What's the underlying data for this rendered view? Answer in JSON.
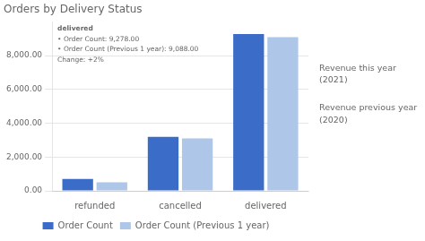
{
  "chart_data": {
    "type": "bar",
    "title": "Orders by Delivery Status",
    "categories": [
      "refunded",
      "cancelled",
      "delivered"
    ],
    "series": [
      {
        "name": "Order Count",
        "color": "#3b6cc7",
        "values": [
          700,
          3200,
          9278
        ]
      },
      {
        "name": "Order Count (Previous 1 year)",
        "color": "#aec6e8",
        "values": [
          500,
          3100,
          9088
        ]
      }
    ],
    "ylim": [
      0,
      10000
    ],
    "yticks": [
      {
        "value": 0,
        "label": "0.00"
      },
      {
        "value": 2000,
        "label": "2,000.00"
      },
      {
        "value": 4000,
        "label": "4,000.00"
      },
      {
        "value": 6000,
        "label": "6,000.00"
      },
      {
        "value": 8000,
        "label": "8,000.00"
      }
    ],
    "grid": true,
    "legend": "bottom",
    "annotations": [
      [
        "delivered",
        "• Order Count: 9,278.00",
        "• Order Count (Previous 1 year): 9,088.00",
        "Change: +2%"
      ],
      [
        "Revenue this year",
        "(2021)",
        "Revenue previous year",
        "(2020)"
      ]
    ]
  }
}
